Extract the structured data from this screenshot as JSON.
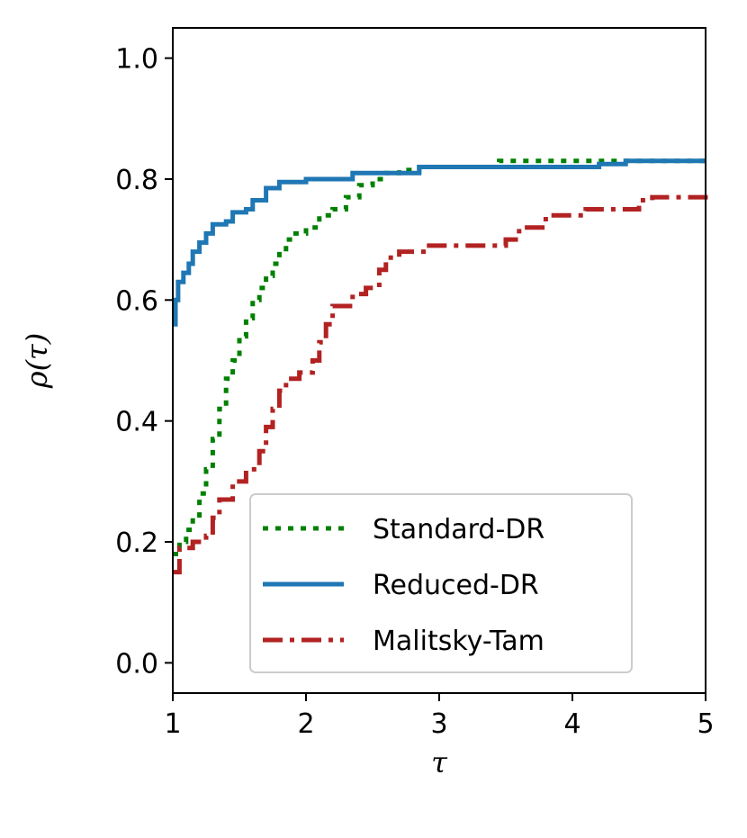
{
  "chart_data": {
    "type": "line",
    "title": "",
    "xlabel": "τ",
    "ylabel": "ρ(τ)",
    "xlim": [
      1,
      5
    ],
    "ylim": [
      -0.05,
      1.05
    ],
    "xticks": [
      1,
      2,
      3,
      4,
      5
    ],
    "xtick_labels": [
      "1",
      "2",
      "3",
      "4",
      "5"
    ],
    "yticks": [
      0.0,
      0.2,
      0.4,
      0.6,
      0.8,
      1.0
    ],
    "ytick_labels": [
      "0.0",
      "0.2",
      "0.4",
      "0.6",
      "0.8",
      "1.0"
    ],
    "grid": false,
    "legend_position": "lower-right",
    "series": [
      {
        "name": "Standard-DR",
        "style": "dotted",
        "color": "#008000",
        "points": [
          [
            1.0,
            0.18
          ],
          [
            1.05,
            0.2
          ],
          [
            1.1,
            0.22
          ],
          [
            1.15,
            0.24
          ],
          [
            1.2,
            0.28
          ],
          [
            1.25,
            0.32
          ],
          [
            1.3,
            0.37
          ],
          [
            1.35,
            0.42
          ],
          [
            1.4,
            0.47
          ],
          [
            1.45,
            0.5
          ],
          [
            1.5,
            0.54
          ],
          [
            1.55,
            0.57
          ],
          [
            1.6,
            0.6
          ],
          [
            1.65,
            0.62
          ],
          [
            1.7,
            0.64
          ],
          [
            1.75,
            0.66
          ],
          [
            1.8,
            0.68
          ],
          [
            1.85,
            0.7
          ],
          [
            1.9,
            0.71
          ],
          [
            2.0,
            0.72
          ],
          [
            2.1,
            0.74
          ],
          [
            2.2,
            0.75
          ],
          [
            2.3,
            0.77
          ],
          [
            2.4,
            0.79
          ],
          [
            2.5,
            0.8
          ],
          [
            2.6,
            0.81
          ],
          [
            2.7,
            0.815
          ],
          [
            2.85,
            0.82
          ],
          [
            3.0,
            0.82
          ],
          [
            3.2,
            0.82
          ],
          [
            3.45,
            0.83
          ],
          [
            5.0,
            0.83
          ]
        ]
      },
      {
        "name": "Reduced-DR",
        "style": "solid",
        "color": "#1f77b4",
        "points": [
          [
            1.0,
            0.56
          ],
          [
            1.02,
            0.6
          ],
          [
            1.04,
            0.63
          ],
          [
            1.08,
            0.645
          ],
          [
            1.12,
            0.66
          ],
          [
            1.15,
            0.68
          ],
          [
            1.2,
            0.695
          ],
          [
            1.25,
            0.71
          ],
          [
            1.3,
            0.725
          ],
          [
            1.4,
            0.73
          ],
          [
            1.45,
            0.745
          ],
          [
            1.55,
            0.75
          ],
          [
            1.6,
            0.765
          ],
          [
            1.7,
            0.785
          ],
          [
            1.8,
            0.795
          ],
          [
            2.0,
            0.8
          ],
          [
            2.2,
            0.8
          ],
          [
            2.35,
            0.81
          ],
          [
            2.6,
            0.81
          ],
          [
            2.85,
            0.82
          ],
          [
            3.5,
            0.82
          ],
          [
            4.2,
            0.825
          ],
          [
            4.4,
            0.83
          ],
          [
            5.0,
            0.83
          ]
        ]
      },
      {
        "name": "Malitsky-Tam",
        "style": "dashdot",
        "color": "#b22222",
        "points": [
          [
            1.0,
            0.15
          ],
          [
            1.05,
            0.19
          ],
          [
            1.15,
            0.2
          ],
          [
            1.25,
            0.21
          ],
          [
            1.3,
            0.24
          ],
          [
            1.35,
            0.27
          ],
          [
            1.45,
            0.3
          ],
          [
            1.55,
            0.32
          ],
          [
            1.65,
            0.35
          ],
          [
            1.7,
            0.39
          ],
          [
            1.75,
            0.42
          ],
          [
            1.8,
            0.45
          ],
          [
            1.85,
            0.47
          ],
          [
            1.95,
            0.48
          ],
          [
            2.05,
            0.5
          ],
          [
            2.1,
            0.53
          ],
          [
            2.15,
            0.56
          ],
          [
            2.2,
            0.59
          ],
          [
            2.35,
            0.61
          ],
          [
            2.45,
            0.62
          ],
          [
            2.55,
            0.65
          ],
          [
            2.6,
            0.67
          ],
          [
            2.7,
            0.68
          ],
          [
            2.9,
            0.69
          ],
          [
            3.2,
            0.69
          ],
          [
            3.5,
            0.7
          ],
          [
            3.6,
            0.72
          ],
          [
            3.8,
            0.74
          ],
          [
            4.1,
            0.75
          ],
          [
            4.5,
            0.765
          ],
          [
            4.6,
            0.77
          ],
          [
            5.0,
            0.775
          ]
        ]
      }
    ]
  }
}
